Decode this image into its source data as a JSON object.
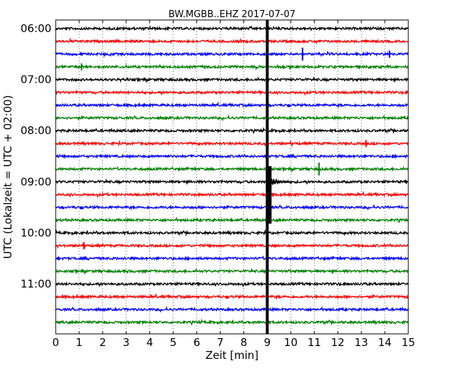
{
  "chart_data": {
    "type": "line",
    "title": "BW.MGBB..EHZ 2017-07-07",
    "xlabel": "Zeit  [min]",
    "ylabel": "UTC (Lokalzeit = UTC + 02:00)",
    "xlim": [
      0,
      15
    ],
    "x_ticks": [
      0,
      1,
      2,
      3,
      4,
      5,
      6,
      7,
      8,
      9,
      10,
      11,
      12,
      13,
      14,
      15
    ],
    "y_tick_labels": [
      "06:00",
      "07:00",
      "08:00",
      "09:00",
      "10:00",
      "11:00"
    ],
    "grid": true,
    "trace_start_times": [
      "06:00",
      "06:15",
      "06:30",
      "06:45",
      "07:00",
      "07:15",
      "07:30",
      "07:45",
      "08:00",
      "08:15",
      "08:30",
      "08:45",
      "09:00",
      "09:15",
      "09:30",
      "09:45",
      "10:00",
      "10:15",
      "10:30",
      "10:45",
      "11:00",
      "11:15",
      "11:30",
      "11:45"
    ],
    "trace_colors": [
      "#000000",
      "#ff0000",
      "#0000ff",
      "#008000"
    ],
    "events": [
      {
        "trace": "06:30",
        "minute": 10.5,
        "amplitude": "spike"
      },
      {
        "trace": "06:30",
        "minute": 14.2,
        "amplitude": "small"
      },
      {
        "trace": "06:45",
        "minute": 1.1,
        "amplitude": "small"
      },
      {
        "trace": "08:15",
        "minute": 13.2,
        "amplitude": "small"
      },
      {
        "trace": "08:45",
        "minute": 11.2,
        "amplitude": "spike"
      },
      {
        "trace": "10:15",
        "minute": 1.2,
        "amplitude": "small"
      },
      {
        "trace": "06:00",
        "minute": 9.0,
        "amplitude": "large"
      }
    ]
  }
}
